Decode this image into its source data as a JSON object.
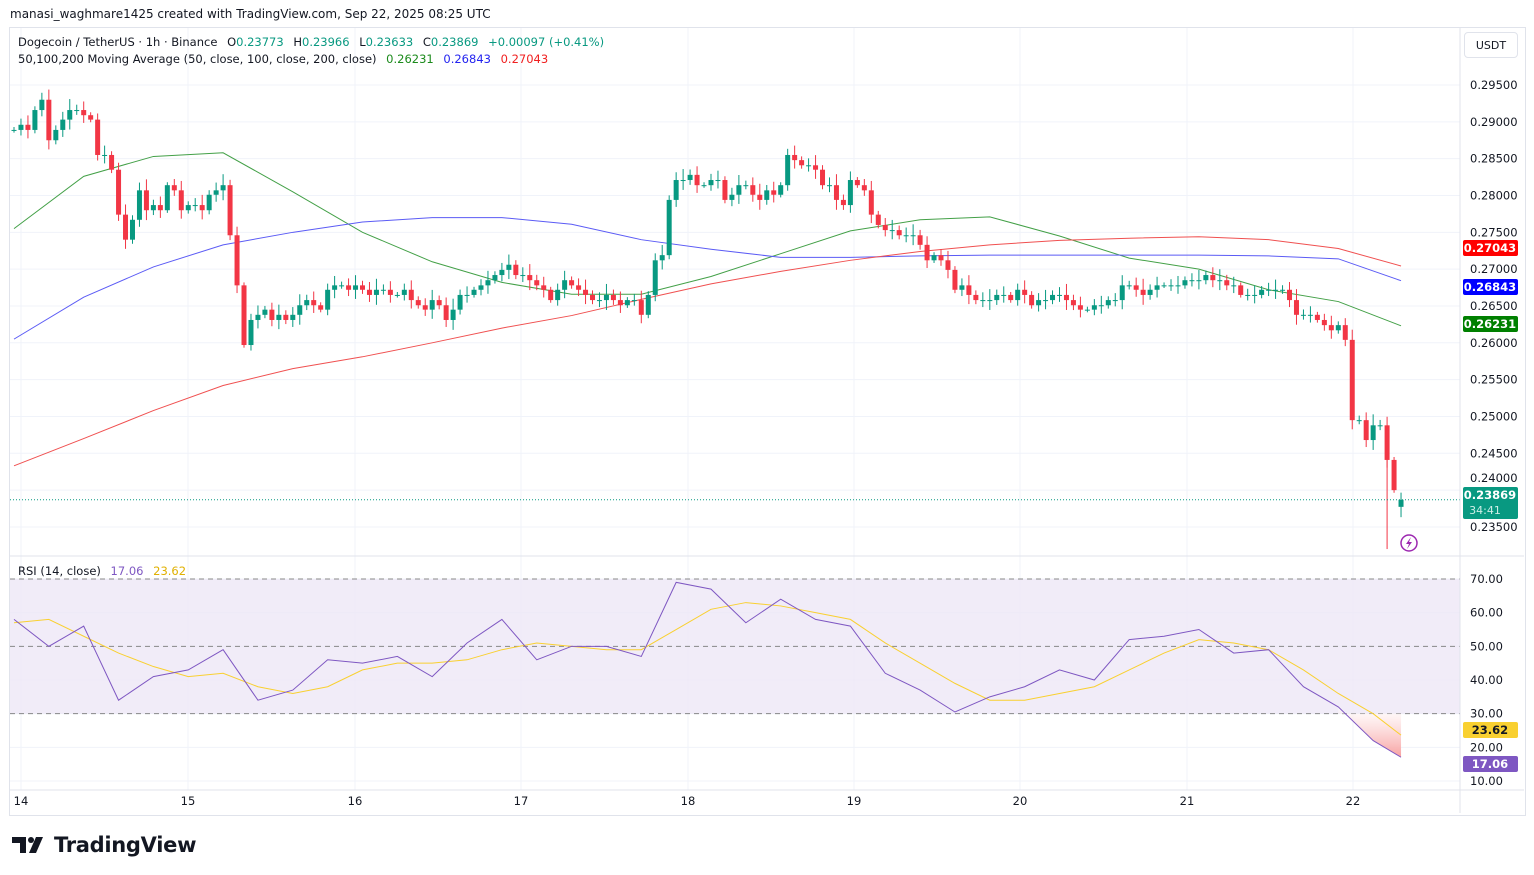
{
  "credit": "manasi_waghmare1425 created with TradingView.com, Sep 22, 2025 08:25 UTC",
  "currency_button": "USDT",
  "logo_text": "TradingView",
  "legend": {
    "symbol": "Dogecoin / TetherUS · 1h · Binance",
    "o_label": "O",
    "o": "0.23773",
    "h_label": "H",
    "h": "0.23966",
    "l_label": "L",
    "l": "0.23633",
    "c_label": "C",
    "c": "0.23869",
    "change": "+0.00097 (+0.41%)",
    "ma_title": "50,100,200 Moving Average (50, close, 100, close, 200, close)",
    "ma50": "0.26231",
    "ma100": "0.26843",
    "ma200": "0.27043"
  },
  "rsi_legend": {
    "title": "RSI (14, close)",
    "rsi": "17.06",
    "rsi_ma": "23.62"
  },
  "price_badges": {
    "ma200": "0.27043",
    "ma100": "0.26843",
    "ma50": "0.26231",
    "last": "0.23869",
    "countdown": "34:41"
  },
  "rsi_badges": {
    "rsi_ma": "23.62",
    "rsi": "17.06"
  },
  "colors": {
    "up": "#089981",
    "down": "#F23645",
    "ma50": "#43A047",
    "ma100": "#5B5BF5",
    "ma200": "#F05050",
    "rsi": "#7E57C2",
    "rsi_ma": "#F9D030",
    "rsi_band": "#EDE7F6"
  },
  "chart_data": [
    {
      "type": "candlestick",
      "interval": "1h",
      "x_tick_labels": [
        "14",
        "15",
        "16",
        "17",
        "18",
        "19",
        "20",
        "21",
        "22"
      ],
      "y_tick_labels": [
        "0.29500",
        "0.29000",
        "0.28500",
        "0.28000",
        "0.27500",
        "0.27000",
        "0.26500",
        "0.26000",
        "0.25500",
        "0.25000",
        "0.24500",
        "0.24000",
        "0.23500"
      ],
      "ylim": [
        0.233,
        0.2955
      ],
      "close": [
        0.2889,
        0.2896,
        0.2889,
        0.2916,
        0.293,
        0.2875,
        0.2889,
        0.2903,
        0.2916,
        0.2916,
        0.2909,
        0.2903,
        0.2855,
        0.2855,
        0.2835,
        0.2774,
        0.274,
        0.2767,
        0.2807,
        0.278,
        0.2787,
        0.278,
        0.2814,
        0.2807,
        0.278,
        0.2787,
        0.2787,
        0.278,
        0.2801,
        0.2807,
        0.2814,
        0.2746,
        0.2678,
        0.2597,
        0.2631,
        0.2638,
        0.2645,
        0.2631,
        0.2638,
        0.2631,
        0.2638,
        0.2651,
        0.2658,
        0.2651,
        0.2645,
        0.2672,
        0.2678,
        0.2678,
        0.2672,
        0.2678,
        0.2672,
        0.2665,
        0.2672,
        0.2672,
        0.2665,
        0.2665,
        0.2672,
        0.2658,
        0.2651,
        0.2645,
        0.2658,
        0.2651,
        0.2631,
        0.2645,
        0.2665,
        0.2665,
        0.2672,
        0.2678,
        0.2685,
        0.2692,
        0.2699,
        0.2706,
        0.2692,
        0.2692,
        0.2685,
        0.2678,
        0.2672,
        0.2658,
        0.2672,
        0.2685,
        0.2678,
        0.2672,
        0.2665,
        0.2658,
        0.2658,
        0.2665,
        0.2658,
        0.2651,
        0.2658,
        0.2658,
        0.2638,
        0.2665,
        0.2712,
        0.2719,
        0.2794,
        0.2821,
        0.2821,
        0.2828,
        0.2814,
        0.2814,
        0.2821,
        0.2821,
        0.2794,
        0.2801,
        0.2814,
        0.2814,
        0.2801,
        0.2794,
        0.2807,
        0.2801,
        0.2814,
        0.2855,
        0.2848,
        0.2841,
        0.2841,
        0.2835,
        0.2814,
        0.2814,
        0.2794,
        0.2787,
        0.2821,
        0.2814,
        0.2807,
        0.2774,
        0.276,
        0.2753,
        0.2753,
        0.2746,
        0.2746,
        0.2746,
        0.2733,
        0.2712,
        0.2719,
        0.2712,
        0.2699,
        0.2672,
        0.2678,
        0.2665,
        0.2658,
        0.2658,
        0.2658,
        0.2665,
        0.2665,
        0.2658,
        0.2672,
        0.2665,
        0.2651,
        0.2658,
        0.2658,
        0.2665,
        0.2665,
        0.2658,
        0.2651,
        0.2645,
        0.2645,
        0.2651,
        0.2651,
        0.2658,
        0.2658,
        0.2678,
        0.2678,
        0.2672,
        0.2665,
        0.2672,
        0.2678,
        0.2678,
        0.2678,
        0.2678,
        0.2685,
        0.2685,
        0.2685,
        0.2692,
        0.2685,
        0.2685,
        0.2678,
        0.2678,
        0.2665,
        0.2665,
        0.2665,
        0.2672,
        0.2672,
        0.2672,
        0.2672,
        0.2658,
        0.2638,
        0.2638,
        0.2638,
        0.2631,
        0.2624,
        0.2617,
        0.2624,
        0.2604,
        0.2495,
        0.2495,
        0.2468,
        0.2488,
        0.2488,
        0.2441,
        0.24,
        0.23869
      ],
      "last": {
        "open": 0.23773,
        "high": 0.23966,
        "low": 0.23633,
        "close": 0.23869
      },
      "series": [
        {
          "name": "MA 50",
          "values": [
            0.2755,
            0.2826,
            0.2853,
            0.2858,
            0.2805,
            0.275,
            0.271,
            0.2682,
            0.2666,
            0.2666,
            0.269,
            0.2721,
            0.2752,
            0.2767,
            0.2771,
            0.2745,
            0.2715,
            0.27,
            0.2672,
            0.2656,
            0.26231
          ]
        },
        {
          "name": "MA 100",
          "values": [
            0.2605,
            0.2662,
            0.2703,
            0.2733,
            0.275,
            0.2764,
            0.277,
            0.277,
            0.2761,
            0.274,
            0.2727,
            0.2716,
            0.2716,
            0.2718,
            0.2719,
            0.2719,
            0.2719,
            0.2719,
            0.2718,
            0.2714,
            0.26843
          ]
        },
        {
          "name": "MA 200",
          "values": [
            0.2433,
            0.247,
            0.2508,
            0.2542,
            0.2565,
            0.2581,
            0.26,
            0.262,
            0.2637,
            0.2659,
            0.268,
            0.2697,
            0.2712,
            0.2724,
            0.2733,
            0.2739,
            0.2742,
            0.2744,
            0.274,
            0.2728,
            0.27043
          ]
        }
      ],
      "ma_sample_every_n_candles": 10
    },
    {
      "type": "line",
      "title": "RSI (14, close)",
      "y_tick_labels": [
        "70.00",
        "60.00",
        "50.00",
        "40.00",
        "30.00",
        "20.00",
        "10.00"
      ],
      "ylim": [
        8,
        72
      ],
      "bands": [
        30,
        50,
        70
      ],
      "sample_every_n_candles": 5,
      "series": [
        {
          "name": "RSI",
          "values": [
            58,
            50,
            56,
            34,
            41,
            43,
            49,
            34,
            37,
            46,
            45,
            47,
            41,
            51,
            58,
            46,
            50,
            50,
            47,
            69,
            67,
            57,
            64,
            58,
            56,
            42,
            37,
            30.5,
            35,
            38,
            43,
            40,
            52,
            53,
            55,
            48,
            49,
            38,
            32,
            22,
            17.06
          ]
        },
        {
          "name": "RSI MA",
          "values": [
            57,
            58,
            53,
            48,
            44,
            41,
            42,
            38,
            36,
            38,
            43,
            45,
            45,
            46,
            49,
            51,
            50,
            49,
            49,
            55,
            61,
            63,
            62,
            60,
            58,
            51,
            45,
            39,
            34,
            34,
            36,
            38,
            43,
            48,
            52,
            51,
            49,
            43,
            36,
            30,
            23.62
          ]
        }
      ]
    }
  ]
}
